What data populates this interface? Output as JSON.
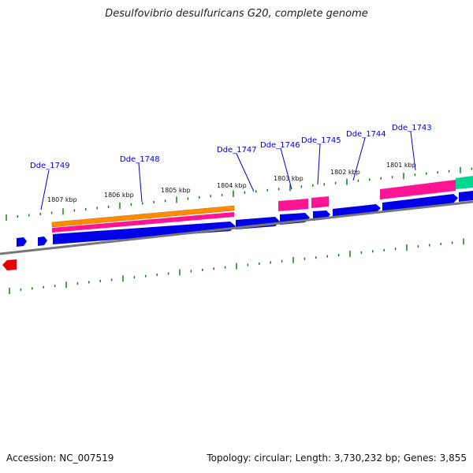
{
  "title": "Desulfovibrio desulfuricans G20, complete genome",
  "footer": {
    "accession": "Accession: NC_007519",
    "summary": "Topology: circular; Length: 3,730,232 bp; Genes: 3,855"
  },
  "kbp_labels": [
    "1807 kbp",
    "1806 kbp",
    "1805 kbp",
    "1804 kbp",
    "1803 kbp",
    "1802 kbp",
    "1801 kbp"
  ],
  "gene_labels": [
    "Dde_1749",
    "Dde_1748",
    "Dde_1747",
    "Dde_1746",
    "Dde_1745",
    "Dde_1744",
    "Dde_1743"
  ],
  "colors": {
    "gene_forward": "#0000e6",
    "gene_reverse": "#e60000",
    "feature_pink": "#ff1493",
    "feature_orange": "#ff8c00",
    "feature_green": "#00d890",
    "backbone": "#888888",
    "tick": "#1a7a1a",
    "label_line": "#0000cc"
  }
}
